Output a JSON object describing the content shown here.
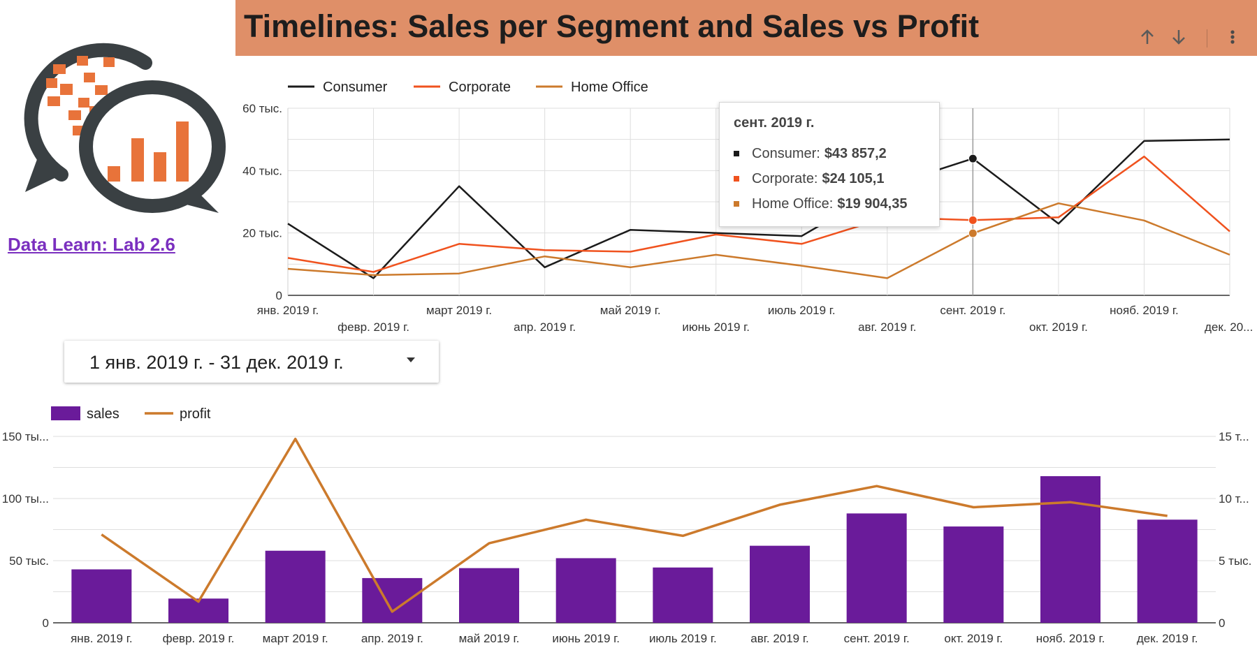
{
  "header": {
    "title": "Timelines: Sales per Segment and Sales vs Profit"
  },
  "sidebar": {
    "link_label": "Data Learn: Lab 2.6"
  },
  "date_filter": {
    "value": "1 янв. 2019 г. - 31 дек. 2019 г."
  },
  "colors": {
    "header_bg": "#df8f68",
    "consumer": "#1b1b1b",
    "corporate": "#f0521e",
    "home_office": "#cc7a2c",
    "sales": "#6a1b9a",
    "profit": "#cc7a2c",
    "link": "#7a2fbf"
  },
  "icons": [
    "logo-chat-bubbles-icon",
    "arrow-up-icon",
    "arrow-down-icon",
    "more-vert-icon",
    "dropdown-caret-icon"
  ],
  "tooltip": {
    "title": "сент. 2019 г.",
    "rows": [
      {
        "name": "Consumer:",
        "value": "$43 857,2",
        "color": "#1b1b1b"
      },
      {
        "name": "Corporate:",
        "value": "$24 105,1",
        "color": "#f0521e"
      },
      {
        "name": "Home Office:",
        "value": "$19 904,35",
        "color": "#cc7a2c"
      }
    ]
  },
  "chart_data": [
    {
      "type": "line",
      "categories": [
        "янв. 2019 г.",
        "февр. 2019 г.",
        "март 2019 г.",
        "апр. 2019 г.",
        "май 2019 г.",
        "июнь 2019 г.",
        "июль 2019 г.",
        "авг. 2019 г.",
        "сент. 2019 г.",
        "окт. 2019 г.",
        "нояб. 2019 г.",
        "дек. 20..."
      ],
      "series": [
        {
          "name": "Consumer",
          "values": [
            23000,
            5500,
            35000,
            9000,
            21000,
            20000,
            19000,
            35000,
            43857.2,
            23000,
            49500,
            50000
          ]
        },
        {
          "name": "Corporate",
          "values": [
            12000,
            7500,
            16500,
            14500,
            14000,
            19500,
            16500,
            25000,
            24105.1,
            25000,
            44500,
            20500
          ]
        },
        {
          "name": "Home Office",
          "values": [
            8500,
            6500,
            7000,
            12500,
            9000,
            13000,
            9500,
            5500,
            19904.35,
            29500,
            24000,
            13000
          ]
        }
      ],
      "yticks": [
        "0",
        "20 тыс.",
        "40 тыс.",
        "60 тыс."
      ],
      "ylim": [
        0,
        60000
      ],
      "legend": "top-left",
      "grid": true,
      "highlight_index": 8
    },
    {
      "type": "bar+line",
      "categories": [
        "янв. 2019 г.",
        "февр. 2019 г.",
        "март 2019 г.",
        "апр. 2019 г.",
        "май 2019 г.",
        "июнь 2019 г.",
        "июль 2019 г.",
        "авг. 2019 г.",
        "сент. 2019 г.",
        "окт. 2019 г.",
        "нояб. 2019 г.",
        "дек. 2019 г."
      ],
      "series": [
        {
          "name": "sales",
          "type": "bar",
          "axis": "left",
          "values": [
            43000,
            19500,
            58000,
            36000,
            44000,
            52000,
            44500,
            62000,
            88000,
            77500,
            118000,
            83000
          ]
        },
        {
          "name": "profit",
          "type": "line",
          "axis": "right",
          "values": [
            7100,
            1700,
            14800,
            900,
            6400,
            8300,
            7000,
            9500,
            11000,
            9300,
            9700,
            8600
          ]
        }
      ],
      "yticks_left": [
        "0",
        "50 тыс.",
        "100 ты...",
        "150 ты..."
      ],
      "yticks_right": [
        "0",
        "5 тыс.",
        "10 т...",
        "15 т..."
      ],
      "ylim_left": [
        0,
        150000
      ],
      "ylim_right": [
        0,
        15000
      ],
      "legend": "top-left",
      "grid": true
    }
  ]
}
